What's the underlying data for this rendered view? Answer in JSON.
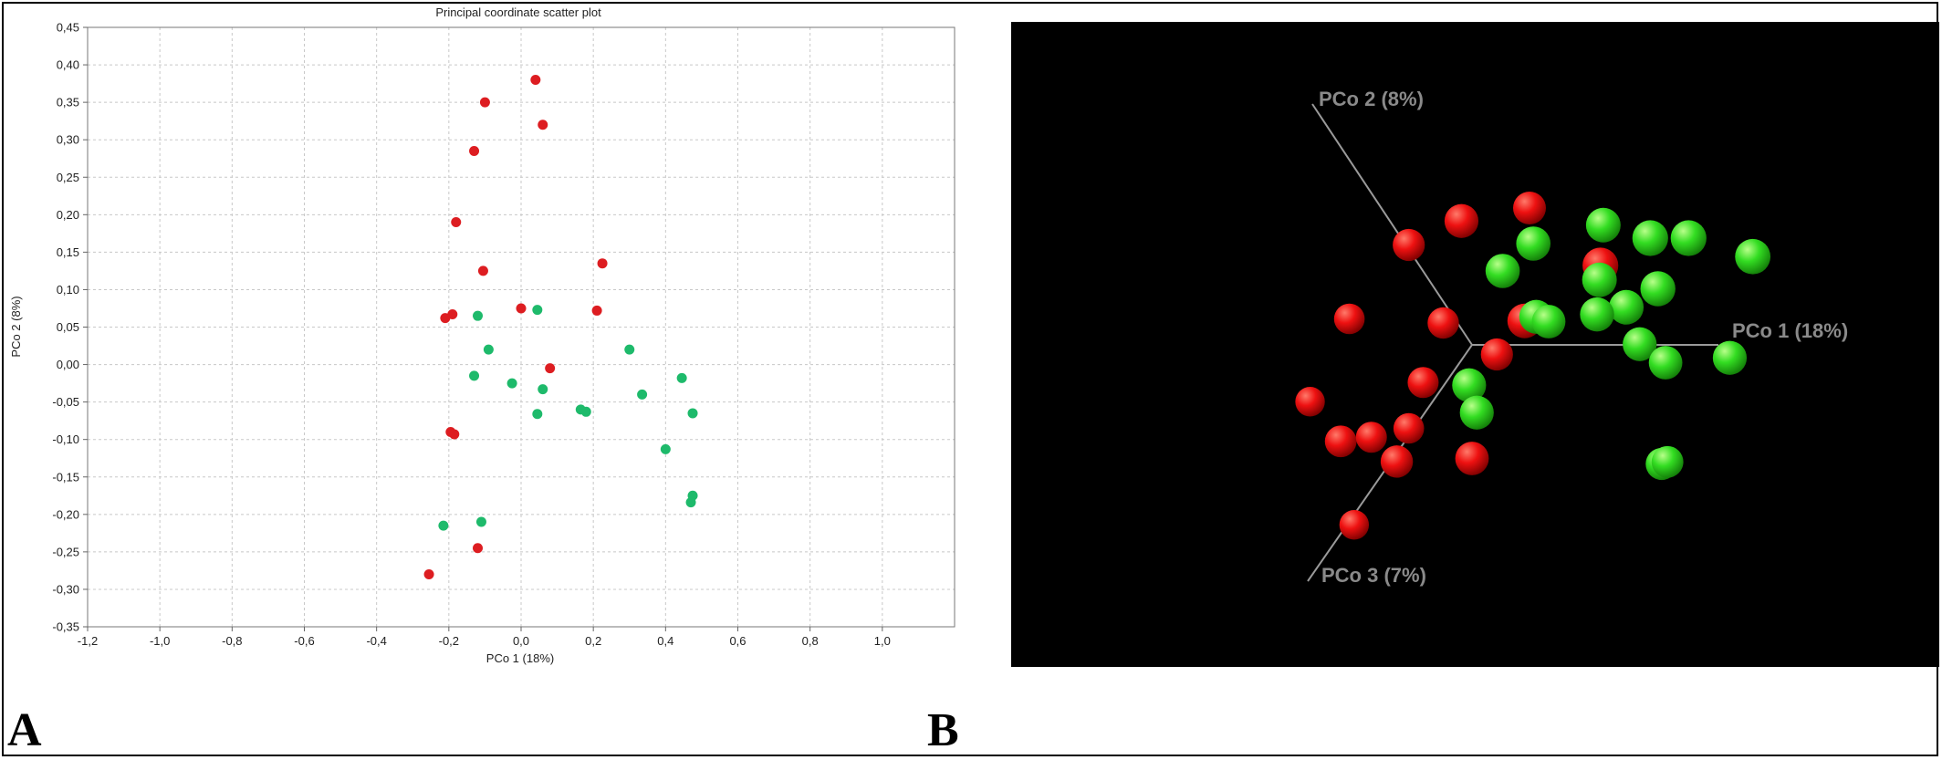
{
  "panels": {
    "a": {
      "letter": "A"
    },
    "b": {
      "letter": "B"
    }
  },
  "chart_data": [
    {
      "type": "scatter",
      "title": "Principal coordinate scatter plot",
      "xlabel": "PCo 1 (18%)",
      "ylabel": "PCo 2 (8%)",
      "xlim": [
        -1.2,
        1.2
      ],
      "ylim": [
        -0.35,
        0.45
      ],
      "x_ticks": [
        -1.2,
        -1.0,
        -0.8,
        -0.6,
        -0.4,
        -0.2,
        0.0,
        0.2,
        0.4,
        0.6,
        0.8,
        1.0
      ],
      "y_ticks": [
        -0.35,
        -0.3,
        -0.25,
        -0.2,
        -0.15,
        -0.1,
        -0.05,
        0.0,
        0.05,
        0.1,
        0.15,
        0.2,
        0.25,
        0.3,
        0.35,
        0.4,
        0.45
      ],
      "tick_label_format": "comma_decimal",
      "grid": true,
      "series": [
        {
          "color": "#dd1d21",
          "points": [
            [
              0.04,
              0.38
            ],
            [
              -0.1,
              0.35
            ],
            [
              0.06,
              0.32
            ],
            [
              -0.13,
              0.285
            ],
            [
              -0.18,
              0.19
            ],
            [
              0.225,
              0.135
            ],
            [
              -0.105,
              0.125
            ],
            [
              0.0,
              0.075
            ],
            [
              0.21,
              0.072
            ],
            [
              -0.19,
              0.067
            ],
            [
              -0.21,
              0.062
            ],
            [
              0.08,
              -0.005
            ],
            [
              -0.195,
              -0.09
            ],
            [
              -0.185,
              -0.093
            ],
            [
              -0.12,
              -0.245
            ],
            [
              -0.255,
              -0.28
            ]
          ]
        },
        {
          "color": "#1eba6b",
          "points": [
            [
              -0.12,
              0.065
            ],
            [
              0.045,
              0.073
            ],
            [
              -0.09,
              0.02
            ],
            [
              0.3,
              0.02
            ],
            [
              -0.13,
              -0.015
            ],
            [
              -0.025,
              -0.025
            ],
            [
              0.06,
              -0.033
            ],
            [
              0.335,
              -0.04
            ],
            [
              0.445,
              -0.018
            ],
            [
              0.165,
              -0.06
            ],
            [
              0.18,
              -0.063
            ],
            [
              0.045,
              -0.066
            ],
            [
              0.475,
              -0.065
            ],
            [
              0.4,
              -0.113
            ],
            [
              0.475,
              -0.175
            ],
            [
              0.47,
              -0.184
            ],
            [
              -0.11,
              -0.21
            ],
            [
              -0.215,
              -0.215
            ]
          ]
        }
      ]
    },
    {
      "type": "scatter",
      "subtype": "3d-projection",
      "axis_labels": {
        "pco1": "PCo 1 (18%)",
        "pco2": "PCo 2 (8%)",
        "pco3": "PCo 3 (7%)"
      },
      "background": "#000000",
      "projection_axes": {
        "pco1": [
          1.0,
          0.0
        ],
        "pco2": [
          -0.6,
          1.0
        ],
        "pco3": [
          -0.7,
          -1.0
        ]
      },
      "series": [
        {
          "color": "#ee1111",
          "points": [
            [
              0.0,
              1.0,
              0.0
            ],
            [
              -0.5,
              0.8,
              0.2
            ],
            [
              -0.4,
              0.8,
              -0.3
            ],
            [
              -0.55,
              0.4,
              0.6
            ],
            [
              -0.1,
              0.3,
              0.4
            ],
            [
              -0.5,
              -0.1,
              0.9
            ],
            [
              -0.05,
              -0.1,
              0.5
            ],
            [
              0.3,
              0.3,
              -0.8
            ],
            [
              0.2,
              0.0,
              0.2
            ],
            [
              0.1,
              0.0,
              -0.5
            ],
            [
              0.0,
              -0.4,
              0.6
            ],
            [
              -0.2,
              -0.5,
              0.5
            ],
            [
              -0.4,
              -0.6,
              0.3
            ],
            [
              -0.1,
              -0.8,
              0.15
            ],
            [
              0.2,
              -0.9,
              -0.2
            ],
            [
              0.0,
              -1.0,
              0.9
            ]
          ]
        },
        {
          "color": "#33dd22",
          "points": [
            [
              0.3,
              0.7,
              -0.5
            ],
            [
              0.0,
              0.6,
              -0.4
            ],
            [
              0.5,
              0.5,
              -0.8
            ],
            [
              0.4,
              0.3,
              -0.5
            ],
            [
              -0.1,
              0.4,
              -0.4
            ],
            [
              0.7,
              0.5,
              -0.8
            ],
            [
              0.2,
              0.1,
              -0.3
            ],
            [
              0.7,
              0.2,
              -0.6
            ],
            [
              0.6,
              0.1,
              -0.5
            ],
            [
              0.5,
              0.1,
              -0.35
            ],
            [
              0.3,
              0.1,
              -0.2
            ],
            [
              1.1,
              0.4,
              -0.7
            ],
            [
              0.8,
              -0.1,
              -0.3
            ],
            [
              0.0,
              -0.4,
              -0.3
            ],
            [
              0.1,
              -0.6,
              -0.3
            ],
            [
              1.0,
              -0.2,
              -0.2
            ],
            [
              1.3,
              -0.2,
              -0.3
            ],
            [
              1.3,
              -0.8,
              0.2
            ],
            [
              1.35,
              -0.75,
              0.3
            ]
          ]
        }
      ]
    }
  ]
}
